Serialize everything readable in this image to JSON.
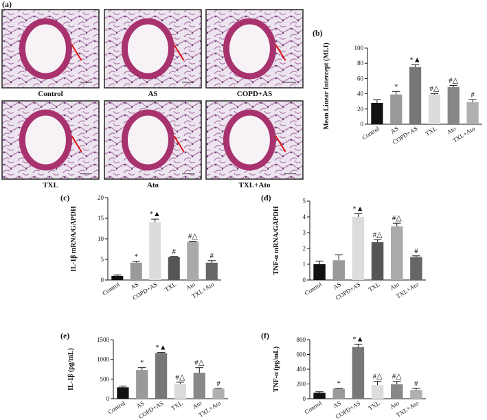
{
  "image_panel": {
    "panel_label": "(a)",
    "captions": [
      "Control",
      "AS",
      "COPD+AS",
      "TXL",
      "Ato",
      "TXL+Ato"
    ]
  },
  "chart_data": [
    {
      "type": "bar",
      "panel_label": "(b)",
      "ylabel": "Mean Linear Intercept (MLI)",
      "categories": [
        "Control",
        "AS",
        "COPD+AS",
        "TXL",
        "Ato",
        "TXL+Ato"
      ],
      "values": [
        28,
        39,
        75,
        39,
        49,
        29
      ],
      "errors": [
        4,
        4,
        3,
        1,
        2,
        3
      ],
      "annotations": [
        null,
        "*",
        "*▲",
        "#△",
        "#△",
        "#"
      ],
      "colors": [
        "#111111",
        "#9a9a9a",
        "#777777",
        "#dcdcdc",
        "#888888",
        "#b0b0b0"
      ],
      "ylim": [
        0,
        100
      ],
      "yticks": [
        0,
        20,
        40,
        60,
        80,
        100
      ]
    },
    {
      "type": "bar",
      "panel_label": "(c)",
      "ylabel": "IL-1β mRNA/GAPDH",
      "categories": [
        "Control",
        "AS",
        "COPD+AS",
        "TXL",
        "Ato",
        "TXL+Ato"
      ],
      "values": [
        1,
        4.2,
        14,
        5.6,
        9.3,
        4.2
      ],
      "errors": [
        0.2,
        0.3,
        0.8,
        0.1,
        0.1,
        0.5
      ],
      "annotations": [
        null,
        "*",
        "*▲",
        "#",
        "#△",
        "#"
      ],
      "colors": [
        "#111111",
        "#9a9a9a",
        "#dcdcdc",
        "#555555",
        "#aaaaaa",
        "#666666"
      ],
      "ylim": [
        0,
        20
      ],
      "yticks": [
        0,
        5,
        10,
        15,
        20
      ]
    },
    {
      "type": "bar",
      "panel_label": "(d)",
      "ylabel": "TNF-α mRNA/GAPDH",
      "categories": [
        "Control",
        "AS",
        "COPD+AS",
        "TXL",
        "Ato",
        "TXL+Ato"
      ],
      "values": [
        1,
        1.25,
        4,
        2.4,
        3.4,
        1.45
      ],
      "errors": [
        0.2,
        0.35,
        0.2,
        0.15,
        0.2,
        0.08
      ],
      "annotations": [
        null,
        null,
        "*▲",
        "#△",
        "#△",
        "#"
      ],
      "colors": [
        "#111111",
        "#9a9a9a",
        "#dcdcdc",
        "#555555",
        "#aaaaaa",
        "#666666"
      ],
      "ylim": [
        0,
        5
      ],
      "yticks": [
        0,
        1,
        2,
        3,
        4,
        5
      ]
    },
    {
      "type": "bar",
      "panel_label": "(e)",
      "ylabel": "IL-1β (pg/mL)",
      "categories": [
        "Control",
        "AS",
        "COPD+AS",
        "TXL",
        "Ato",
        "TXL+Ato"
      ],
      "values": [
        290,
        730,
        1160,
        380,
        660,
        250
      ],
      "errors": [
        30,
        60,
        15,
        40,
        130,
        15
      ],
      "annotations": [
        null,
        "*",
        "*▲",
        "#△",
        "#△",
        "#"
      ],
      "colors": [
        "#111111",
        "#9a9a9a",
        "#777777",
        "#dcdcdc",
        "#888888",
        "#b0b0b0"
      ],
      "ylim": [
        0,
        1500
      ],
      "yticks": [
        0,
        500,
        1000,
        1500
      ]
    },
    {
      "type": "bar",
      "panel_label": "(f)",
      "ylabel": "TNF-α (pg/mL)",
      "categories": [
        "Control",
        "AS",
        "COPD+AS",
        "TXL",
        "Ato",
        "TXL+Ato"
      ],
      "values": [
        80,
        135,
        700,
        185,
        195,
        120
      ],
      "errors": [
        15,
        5,
        40,
        50,
        40,
        20
      ],
      "annotations": [
        null,
        "*",
        "*▲",
        "#△",
        "#△",
        "#"
      ],
      "colors": [
        "#111111",
        "#9a9a9a",
        "#777777",
        "#dcdcdc",
        "#888888",
        "#b0b0b0"
      ],
      "ylim": [
        0,
        800
      ],
      "yticks": [
        0,
        200,
        400,
        600,
        800
      ]
    }
  ]
}
